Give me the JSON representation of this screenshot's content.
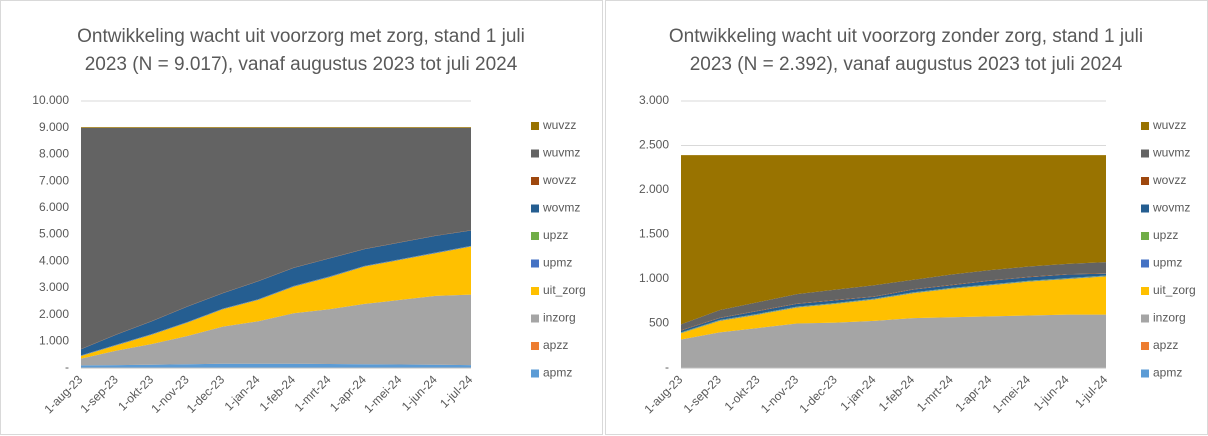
{
  "chart_data": [
    {
      "type": "stacked_area",
      "title": "Ontwikkeling wacht uit voorzorg met zorg, stand 1 juli 2023 (N = 9.017), vanaf augustus 2023 tot juli 2024",
      "categories": [
        "1-aug-23",
        "1-sep-23",
        "1-okt-23",
        "1-nov-23",
        "1-dec-23",
        "1-jan-24",
        "1-feb-24",
        "1-mrt-24",
        "1-apr-24",
        "1-mei-24",
        "1-jun-24",
        "1-jul-24"
      ],
      "ylim": [
        0,
        10000
      ],
      "yticks": [
        {
          "value": 0,
          "label": "-"
        },
        {
          "value": 1000,
          "label": "1.000"
        },
        {
          "value": 2000,
          "label": "2.000"
        },
        {
          "value": 3000,
          "label": "3.000"
        },
        {
          "value": 4000,
          "label": "4.000"
        },
        {
          "value": 5000,
          "label": "5.000"
        },
        {
          "value": 6000,
          "label": "6.000"
        },
        {
          "value": 7000,
          "label": "7.000"
        },
        {
          "value": 8000,
          "label": "8.000"
        },
        {
          "value": 9000,
          "label": "9.000"
        },
        {
          "value": 10000,
          "label": "10.000"
        }
      ],
      "grid": true,
      "series": [
        {
          "name": "apmz",
          "color": "#5b9bd5",
          "values": [
            100,
            110,
            120,
            140,
            160,
            160,
            160,
            150,
            140,
            130,
            120,
            110
          ]
        },
        {
          "name": "apzz",
          "color": "#ed7d31",
          "values": [
            0,
            0,
            0,
            0,
            0,
            0,
            0,
            0,
            0,
            0,
            0,
            0
          ]
        },
        {
          "name": "inzorg",
          "color": "#a5a5a5",
          "values": [
            250,
            540,
            780,
            1060,
            1390,
            1590,
            1890,
            2050,
            2260,
            2420,
            2580,
            2640
          ]
        },
        {
          "name": "uit_zorg",
          "color": "#ffc000",
          "values": [
            100,
            200,
            350,
            500,
            650,
            800,
            1000,
            1200,
            1400,
            1500,
            1600,
            1800
          ]
        },
        {
          "name": "upmz",
          "color": "#4472c4",
          "values": [
            20,
            20,
            20,
            20,
            20,
            20,
            20,
            20,
            20,
            20,
            20,
            20
          ]
        },
        {
          "name": "upzz",
          "color": "#70ad47",
          "values": [
            5,
            5,
            5,
            5,
            5,
            5,
            5,
            5,
            5,
            5,
            5,
            5
          ]
        },
        {
          "name": "wovmz",
          "color": "#255e91",
          "values": [
            225,
            375,
            475,
            575,
            575,
            675,
            675,
            675,
            625,
            625,
            625,
            575
          ]
        },
        {
          "name": "wovzz",
          "color": "#9e480e",
          "values": [
            10,
            10,
            10,
            10,
            10,
            10,
            10,
            10,
            10,
            10,
            10,
            10
          ]
        },
        {
          "name": "wuvmz",
          "color": "#636363",
          "values": [
            8280,
            7730,
            7230,
            6680,
            6180,
            5730,
            5230,
            4880,
            4530,
            4280,
            4030,
            3830
          ]
        },
        {
          "name": "wuvzz",
          "color": "#997300",
          "values": [
            27,
            27,
            27,
            27,
            27,
            27,
            27,
            27,
            27,
            27,
            27,
            27
          ]
        }
      ]
    },
    {
      "type": "stacked_area",
      "title": "Ontwikkeling wacht uit voorzorg zonder zorg, stand 1 juli 2023 (N = 2.392), vanaf augustus 2023 tot juli 2024",
      "categories": [
        "1-aug-23",
        "1-sep-23",
        "1-okt-23",
        "1-nov-23",
        "1-dec-23",
        "1-jan-24",
        "1-feb-24",
        "1-mrt-24",
        "1-apr-24",
        "1-mei-24",
        "1-jun-24",
        "1-jul-24"
      ],
      "ylim": [
        0,
        3000
      ],
      "yticks": [
        {
          "value": 0,
          "label": "-"
        },
        500,
        {
          "value": 1000,
          "label": "1.000"
        },
        {
          "value": 1500,
          "label": "1.500"
        },
        {
          "value": 2000,
          "label": "2.000"
        },
        {
          "value": 2500,
          "label": "2.500"
        },
        {
          "value": 3000,
          "label": "3.000"
        }
      ],
      "grid": true,
      "series": [
        {
          "name": "apmz",
          "color": "#5b9bd5",
          "values": [
            0,
            0,
            0,
            0,
            0,
            0,
            0,
            0,
            0,
            0,
            0,
            0
          ]
        },
        {
          "name": "apzz",
          "color": "#ed7d31",
          "values": [
            0,
            0,
            0,
            0,
            0,
            0,
            0,
            0,
            0,
            0,
            0,
            0
          ]
        },
        {
          "name": "inzorg",
          "color": "#a5a5a5",
          "values": [
            320,
            400,
            450,
            500,
            510,
            530,
            560,
            570,
            580,
            590,
            600,
            600
          ]
        },
        {
          "name": "uit_zorg",
          "color": "#ffc000",
          "values": [
            70,
            130,
            150,
            180,
            210,
            240,
            280,
            320,
            350,
            380,
            400,
            430
          ]
        },
        {
          "name": "upmz",
          "color": "#4472c4",
          "values": [
            5,
            5,
            5,
            5,
            5,
            5,
            5,
            5,
            5,
            5,
            5,
            5
          ]
        },
        {
          "name": "upzz",
          "color": "#70ad47",
          "values": [
            5,
            5,
            5,
            5,
            5,
            5,
            5,
            5,
            5,
            5,
            5,
            5
          ]
        },
        {
          "name": "wovmz",
          "color": "#255e91",
          "values": [
            20,
            20,
            30,
            30,
            30,
            20,
            30,
            30,
            40,
            40,
            40,
            20
          ]
        },
        {
          "name": "wovzz",
          "color": "#9e480e",
          "values": [
            5,
            5,
            5,
            5,
            5,
            5,
            5,
            5,
            5,
            5,
            5,
            5
          ]
        },
        {
          "name": "wuvmz",
          "color": "#636363",
          "values": [
            65,
            85,
            95,
            105,
            115,
            125,
            105,
            115,
            115,
            115,
            115,
            125
          ]
        },
        {
          "name": "wuvzz",
          "color": "#997300",
          "values": [
            1902,
            1742,
            1652,
            1562,
            1512,
            1462,
            1402,
            1342,
            1292,
            1252,
            1222,
            1202
          ]
        }
      ]
    }
  ]
}
